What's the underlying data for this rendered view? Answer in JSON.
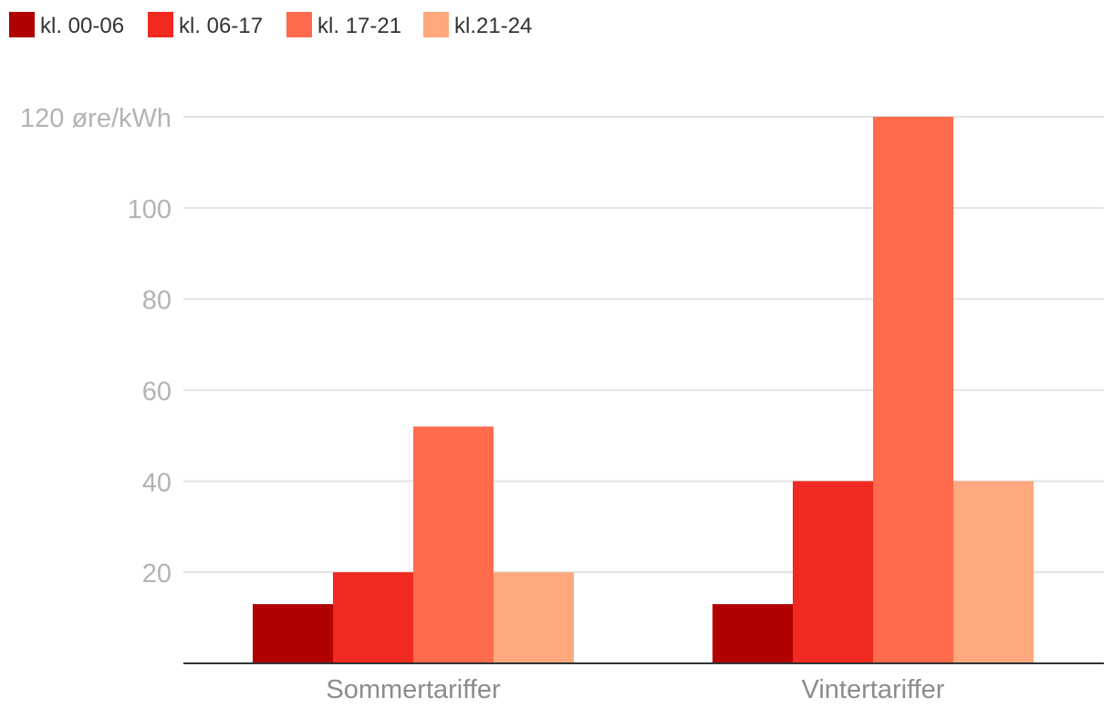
{
  "chart_data": {
    "type": "bar",
    "categories": [
      "Sommertariffer",
      "Vintertariffer"
    ],
    "series": [
      {
        "name": "kl. 00-06",
        "values": [
          13,
          13
        ],
        "color": "#b00000"
      },
      {
        "name": "kl. 06-17",
        "values": [
          20,
          40
        ],
        "color": "#f02a20"
      },
      {
        "name": "kl. 17-21",
        "values": [
          52,
          120
        ],
        "color": "#ff6b4c"
      },
      {
        "name": "kl.21-24",
        "values": [
          20,
          40
        ],
        "color": "#ffa87e"
      }
    ],
    "yticks": [
      {
        "value": 20,
        "label": "20"
      },
      {
        "value": 40,
        "label": "40"
      },
      {
        "value": 60,
        "label": "60"
      },
      {
        "value": 80,
        "label": "80"
      },
      {
        "value": 100,
        "label": "100"
      },
      {
        "value": 120,
        "label": "120 øre/kWh"
      }
    ],
    "ylim": [
      0,
      120
    ],
    "grid": true,
    "legend_position": "top-left",
    "title": "",
    "xlabel": "",
    "ylabel": ""
  }
}
